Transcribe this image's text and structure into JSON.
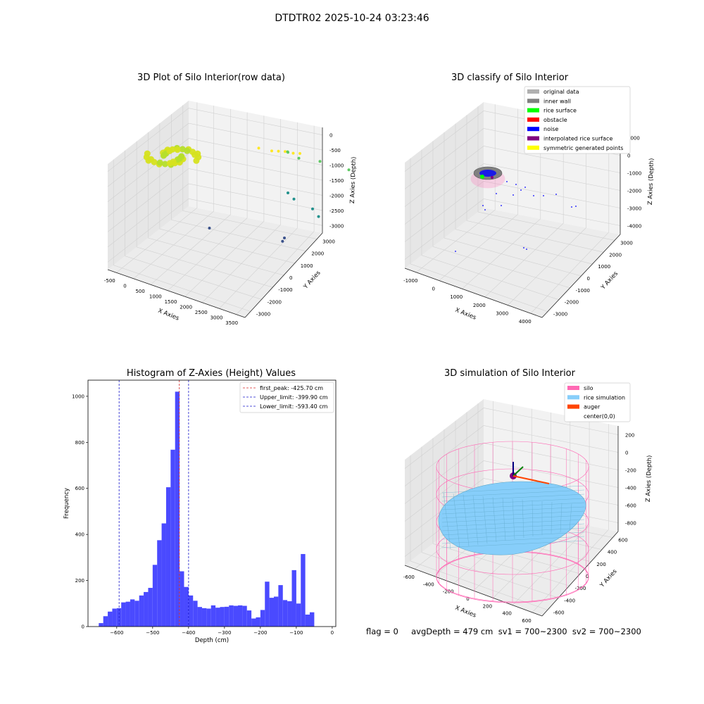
{
  "figure": {
    "suptitle": "DTDTR02 2025-10-24 03:23:46",
    "footer": "flag = 0     avgDepth = 479 cm  sv1 = 700~2300  sv2 = 700~2300"
  },
  "colors": {
    "histogram_bar": "#4a4aff",
    "first_peak": "#d62728",
    "limits": "#1a1acc",
    "silo": "#ff69b4",
    "rice": "#87cefa",
    "auger": "#ff4500"
  },
  "chart_data": [
    {
      "type": "scatter",
      "title": "3D Plot of Silo Interior(row data)",
      "xlabel": "X Axies",
      "ylabel": "Y Axies",
      "zlabel": "Z Axies (Depth)",
      "xticks": [
        "-500",
        "0",
        "500",
        "1000",
        "1500",
        "2000",
        "2500",
        "3000",
        "3500"
      ],
      "yticks": [
        "-3000",
        "-2000",
        "-1000",
        "0",
        "1000",
        "2000",
        "3000"
      ],
      "zticks": [
        "0",
        "-500",
        "-1000",
        "-1500",
        "-2000",
        "-2500",
        "-3000"
      ],
      "colormap": "viridis",
      "series": [
        {
          "points": [
            [
              0,
              -900,
              -500
            ],
            [
              200,
              -850,
              -520
            ],
            [
              400,
              -800,
              -540
            ],
            [
              300,
              -700,
              -600
            ],
            [
              100,
              -750,
              -580
            ],
            [
              500,
              -650,
              -620
            ],
            [
              600,
              -500,
              -700
            ],
            [
              450,
              -400,
              -760
            ],
            [
              250,
              -550,
              -680
            ],
            [
              550,
              -300,
              -800
            ],
            [
              700,
              -200,
              -850
            ],
            [
              650,
              -100,
              -900
            ],
            [
              700,
              0,
              -950
            ],
            [
              600,
              100,
              -980
            ],
            [
              450,
              200,
              -1000
            ],
            [
              300,
              250,
              -1020
            ],
            [
              150,
              150,
              -990
            ],
            [
              0,
              50,
              -960
            ],
            [
              -100,
              -100,
              -920
            ],
            [
              -50,
              -300,
              -860
            ]
          ]
        },
        {
          "points": [
            [
              500,
              300,
              -1000
            ],
            [
              800,
              500,
              -1100
            ],
            [
              900,
              700,
              -1150
            ],
            [
              1000,
              900,
              -1200
            ],
            [
              1200,
              1000,
              -1250
            ],
            [
              1300,
              1200,
              -1300
            ],
            [
              800,
              1400,
              -1400
            ],
            [
              700,
              1600,
              -1500
            ],
            [
              1100,
              1500,
              -1600
            ],
            [
              1600,
              1800,
              -1700
            ],
            [
              2400,
              2000,
              -1900
            ],
            [
              1700,
              -200,
              -2200
            ],
            [
              2000,
              -400,
              -2300
            ],
            [
              2700,
              -600,
              -2450
            ],
            [
              3000,
              -800,
              -2600
            ],
            [
              500,
              -2500,
              -3000
            ],
            [
              2700,
              -2200,
              -3000
            ],
            [
              2750,
              -2400,
              -3050
            ]
          ]
        }
      ]
    },
    {
      "type": "scatter",
      "title": "3D classify of Silo Interior",
      "xlabel": "X Axies",
      "ylabel": "Y Axies",
      "zlabel": "Z Axies (Depth)",
      "xticks": [
        "-1000",
        "0",
        "1000",
        "2000",
        "3000",
        "4000"
      ],
      "yticks": [
        "-3000",
        "-2000",
        "-1000",
        "0",
        "1000",
        "2000",
        "3000"
      ],
      "zticks": [
        "1000",
        "0",
        "-1000",
        "-2000",
        "-3000",
        "-4000"
      ],
      "legend": [
        {
          "label": "original data",
          "color": "#b0b0b0"
        },
        {
          "label": "inner wall",
          "color": "#808080"
        },
        {
          "label": "rice surface",
          "color": "#00ff00"
        },
        {
          "label": "obstacle",
          "color": "#ff0000"
        },
        {
          "label": "noise",
          "color": "#0000ff"
        },
        {
          "label": "interpolated rice surface",
          "color": "#800080"
        },
        {
          "label": "symmetric generated points",
          "color": "#ffff00"
        }
      ],
      "legend_loc": "upper right"
    },
    {
      "type": "bar",
      "title": "Histogram of Z-Axies (Height) Values",
      "xlabel": "Depth (cm)",
      "ylabel": "Frequency",
      "xlim": [
        -680,
        10
      ],
      "ylim": [
        0,
        1070
      ],
      "xticks": [
        -600,
        -500,
        -400,
        -300,
        -200,
        -100,
        0
      ],
      "yticks": [
        0,
        200,
        400,
        600,
        800,
        1000
      ],
      "bin_width": 12.5,
      "bin_start": -650,
      "values": [
        15,
        45,
        65,
        78,
        80,
        105,
        108,
        118,
        112,
        135,
        150,
        168,
        268,
        375,
        448,
        605,
        768,
        1020,
        240,
        172,
        135,
        112,
        85,
        80,
        78,
        92,
        82,
        85,
        86,
        92,
        90,
        92,
        90,
        70,
        35,
        40,
        72,
        195,
        125,
        130,
        180,
        115,
        110,
        245,
        100,
        315,
        52,
        62
      ],
      "lines": [
        {
          "label": "first_peak: -425.70 cm",
          "x": -425.7,
          "style": "red"
        },
        {
          "label": "Upper_limit: -399.90 cm",
          "x": -399.9,
          "style": "blue"
        },
        {
          "label": "Lower_limit: -593.40 cm",
          "x": -593.4,
          "style": "blue"
        }
      ],
      "legend_loc": "upper right"
    },
    {
      "type": "scatter",
      "title": "3D simulation of Silo Interior",
      "xlabel": "X Axies",
      "ylabel": "Y Axies",
      "zlabel": "Z Axies (Depth)",
      "xticks": [
        "-600",
        "-400",
        "-200",
        "0",
        "200",
        "400",
        "600"
      ],
      "yticks": [
        "-600",
        "-400",
        "-200",
        "0",
        "200",
        "400",
        "600"
      ],
      "zticks": [
        "200",
        "0",
        "-200",
        "-400",
        "-600",
        "-800"
      ],
      "legend": [
        {
          "label": "silo",
          "color": "#ff69b4"
        },
        {
          "label": "rice simulation",
          "color": "#87cefa"
        },
        {
          "label": "auger",
          "color": "#ff4500"
        },
        {
          "label": "center(0,0)",
          "color": ""
        }
      ],
      "legend_loc": "upper right"
    }
  ]
}
